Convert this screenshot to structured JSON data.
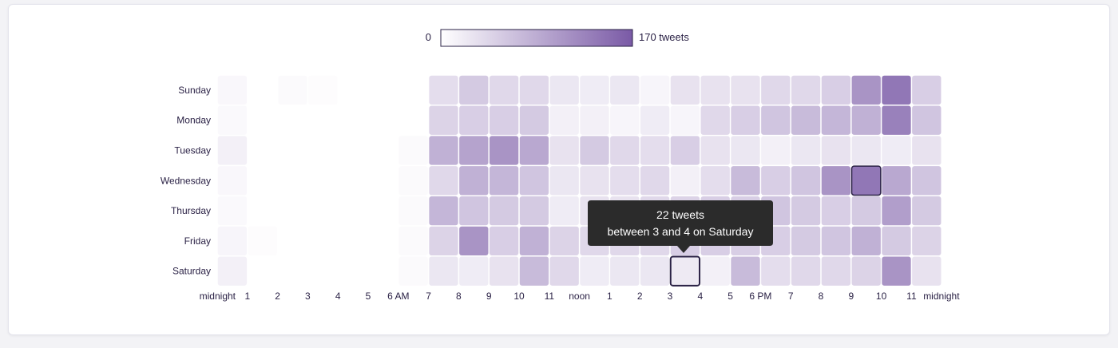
{
  "chart_data": {
    "type": "heatmap",
    "legend": {
      "min_label": "0",
      "max_label": "170 tweets",
      "min": 0,
      "max": 170,
      "color_low": "#ffffff",
      "color_high": "#7a5aa6"
    },
    "days": [
      "Sunday",
      "Monday",
      "Tuesday",
      "Wednesday",
      "Thursday",
      "Friday",
      "Saturday"
    ],
    "hour_labels": [
      "midnight",
      "1",
      "2",
      "3",
      "4",
      "5",
      "6 AM",
      "7",
      "8",
      "9",
      "10",
      "11",
      "noon",
      "1",
      "2",
      "3",
      "4",
      "5",
      "6 PM",
      "7",
      "8",
      "9",
      "10",
      "11",
      "midnight"
    ],
    "values": [
      [
        8,
        0,
        5,
        3,
        0,
        0,
        0,
        35,
        55,
        40,
        40,
        25,
        20,
        25,
        10,
        30,
        30,
        30,
        40,
        40,
        50,
        110,
        140,
        50
      ],
      [
        6,
        0,
        0,
        0,
        0,
        0,
        0,
        45,
        50,
        50,
        55,
        15,
        15,
        10,
        20,
        10,
        40,
        50,
        60,
        70,
        75,
        80,
        130,
        60
      ],
      [
        15,
        0,
        0,
        0,
        0,
        0,
        5,
        80,
        95,
        110,
        90,
        30,
        55,
        40,
        35,
        50,
        30,
        25,
        15,
        25,
        30,
        25,
        20,
        30
      ],
      [
        8,
        0,
        0,
        0,
        0,
        0,
        5,
        40,
        80,
        75,
        60,
        25,
        30,
        35,
        40,
        15,
        35,
        70,
        50,
        60,
        110,
        140,
        90,
        60
      ],
      [
        6,
        0,
        0,
        0,
        0,
        0,
        5,
        75,
        60,
        55,
        55,
        20,
        30,
        30,
        40,
        45,
        50,
        50,
        60,
        55,
        50,
        55,
        100,
        55
      ],
      [
        10,
        3,
        0,
        0,
        0,
        0,
        5,
        45,
        110,
        50,
        80,
        45,
        40,
        40,
        40,
        50,
        50,
        50,
        50,
        55,
        60,
        80,
        55,
        45
      ],
      [
        15,
        0,
        0,
        0,
        0,
        0,
        5,
        25,
        20,
        30,
        70,
        40,
        20,
        25,
        25,
        22,
        15,
        70,
        35,
        40,
        40,
        45,
        110,
        30
      ]
    ],
    "highlight": {
      "day_index": 6,
      "hour_index": 15
    },
    "outlined": {
      "day_index": 3,
      "hour_index": 21
    },
    "tooltip": {
      "line1": "22 tweets",
      "line2": "between 3 and 4 on Saturday"
    }
  }
}
